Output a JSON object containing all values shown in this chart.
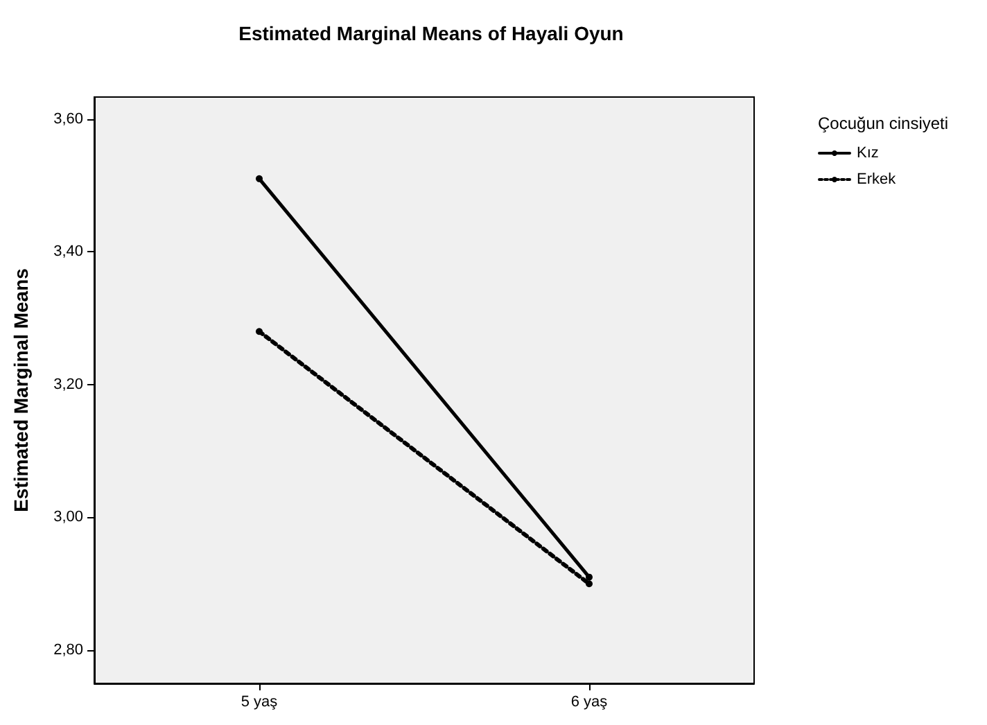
{
  "chart_data": {
    "type": "line",
    "title": "Estimated Marginal Means of Hayali Oyun",
    "ylabel": "Estimated Marginal Means",
    "legend_title": "Çocuğun cinsiyeti",
    "categories": [
      "5 yaş",
      "6 yaş"
    ],
    "series": [
      {
        "name": "Kız",
        "color": "#000000",
        "values": [
          3.51,
          2.91
        ],
        "line_style": "solid"
      },
      {
        "name": "Erkek",
        "color": "#000000",
        "values": [
          3.28,
          2.9
        ],
        "line_style": "dotted"
      }
    ],
    "ylim": [
      2.75,
      3.633
    ],
    "yticks": [
      {
        "value": 2.8,
        "label": "2,80"
      },
      {
        "value": 3.0,
        "label": "3,00"
      },
      {
        "value": 3.2,
        "label": "3,20"
      },
      {
        "value": 3.4,
        "label": "3,40"
      },
      {
        "value": 3.6,
        "label": "3,60"
      }
    ],
    "grid": false,
    "legend": "top right",
    "marker": "circle"
  }
}
